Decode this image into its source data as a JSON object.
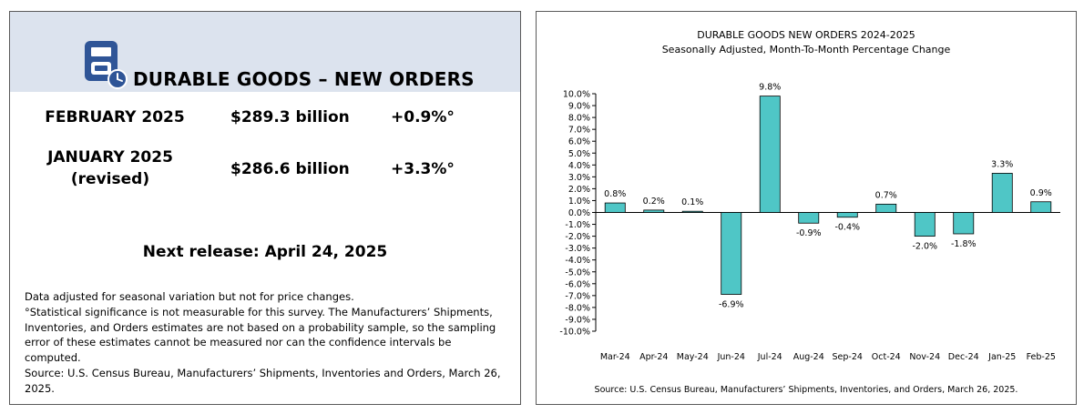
{
  "left": {
    "title": "DURABLE GOODS – NEW ORDERS",
    "rows": [
      {
        "label": "FEBRUARY 2025",
        "value": "$289.3 billion",
        "change": "+0.9%°"
      },
      {
        "label": "JANUARY 2025",
        "sublabel": "(revised)",
        "value": "$286.6 billion",
        "change": "+3.3%°"
      }
    ],
    "next_release": "Next release:  April 24, 2025",
    "footnotes": [
      "Data adjusted for seasonal variation but not for price changes.",
      "°Statistical significance is not measurable for this survey.  The Manufacturers’ Shipments, Inventories, and Orders estimates are not based on a probability sample, so the sampling error of these estimates cannot be measured nor can the confidence intervals be computed.",
      "Source: U.S. Census Bureau, Manufacturers’ Shipments, Inventories and Orders, March 26, 2025."
    ],
    "icon": "document-clock-icon",
    "header_color": "#dce3ee",
    "icon_color": "#2f5597"
  },
  "chart_data": {
    "type": "bar",
    "title": "DURABLE GOODS NEW ORDERS 2024-2025",
    "subtitle": "Seasonally Adjusted,  Month-To-Month Percentage Change",
    "categories": [
      "Mar-24",
      "Apr-24",
      "May-24",
      "Jun-24",
      "Jul-24",
      "Aug-24",
      "Sep-24",
      "Oct-24",
      "Nov-24",
      "Dec-24",
      "Jan-25",
      "Feb-25"
    ],
    "values": [
      0.8,
      0.2,
      0.1,
      -6.9,
      9.8,
      -0.9,
      -0.4,
      0.7,
      -2.0,
      -1.8,
      3.3,
      0.9
    ],
    "data_labels": [
      "0.8%",
      "0.2%",
      "0.1%",
      "-6.9%",
      "9.8%",
      "-0.9%",
      "-0.4%",
      "0.7%",
      "-2.0%",
      "-1.8%",
      "3.3%",
      "0.9%"
    ],
    "ylim": [
      -10,
      10
    ],
    "ytick_step": 1,
    "ytick_suffix": "%",
    "grid": false,
    "legend": "none",
    "bar_color": "#4fc6c6",
    "source": "Source: U.S. Census Bureau, Manufacturers’ Shipments, Inventories, and Orders, March 26, 2025."
  }
}
